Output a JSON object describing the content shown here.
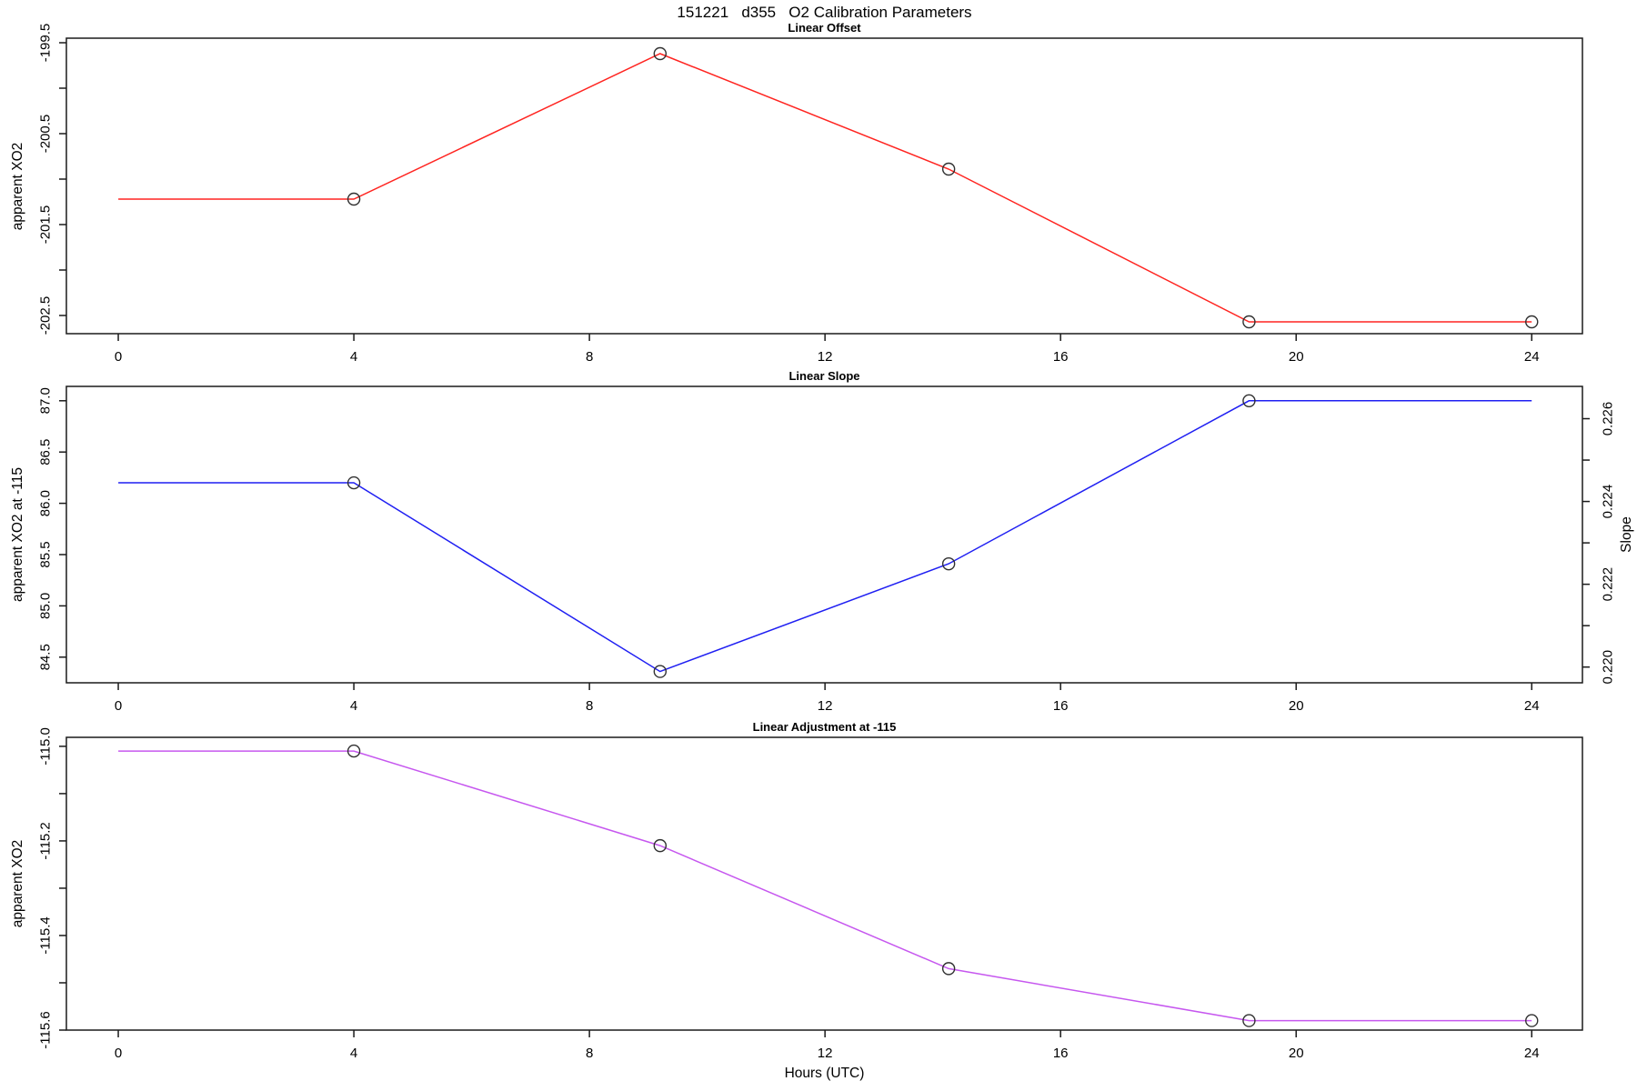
{
  "page_title": "151221   d355   O2 Calibration Parameters",
  "x_axis": {
    "label": "Hours (UTC)",
    "xlim": [
      -0.881,
      24.861
    ],
    "ticks": [
      {
        "v": 0,
        "label": "0"
      },
      {
        "v": 4,
        "label": "4"
      },
      {
        "v": 8,
        "label": "8"
      },
      {
        "v": 12,
        "label": "12"
      },
      {
        "v": 16,
        "label": "16"
      },
      {
        "v": 20,
        "label": "20"
      },
      {
        "v": 24,
        "label": "24"
      }
    ]
  },
  "colors": {
    "axis": "#1a1a1a",
    "marker_outline": "#303030",
    "offset_line": "#ff2420",
    "slope_line": "#1f1ff2",
    "adjustment_line": "#c657ef"
  },
  "chart_data": [
    {
      "type": "line",
      "title": "Linear Offset",
      "ylabel": "apparent XO2",
      "series_color": "#ff2420",
      "x": [
        0,
        4,
        9.2,
        14.1,
        19.2,
        24
      ],
      "y": [
        -201.22,
        -201.22,
        -199.62,
        -200.89,
        -202.57,
        -202.57
      ],
      "markers": [
        false,
        true,
        true,
        true,
        true,
        true
      ],
      "ylim": [
        -202.7,
        -199.45
      ],
      "yticks": [
        {
          "v": -199.5,
          "label": "-199.5"
        },
        {
          "v": -200.0,
          "label": ""
        },
        {
          "v": -200.5,
          "label": "-200.5"
        },
        {
          "v": -201.0,
          "label": ""
        },
        {
          "v": -201.5,
          "label": "-201.5"
        },
        {
          "v": -202.0,
          "label": ""
        },
        {
          "v": -202.5,
          "label": "-202.5"
        }
      ]
    },
    {
      "type": "line",
      "title": "Linear Slope",
      "ylabel": "apparent XO2 at -115",
      "ylabel_right": "Slope",
      "series_color": "#1f1ff2",
      "x": [
        0,
        4,
        9.2,
        14.1,
        19.2,
        24
      ],
      "y": [
        86.2,
        86.2,
        84.36,
        85.41,
        87.0,
        87.0
      ],
      "markers": [
        false,
        true,
        true,
        true,
        true,
        false
      ],
      "ylim": [
        84.25,
        87.14
      ],
      "yticks": [
        {
          "v": 87.0,
          "label": "87.0"
        },
        {
          "v": 86.5,
          "label": "86.5"
        },
        {
          "v": 86.0,
          "label": "86.0"
        },
        {
          "v": 85.5,
          "label": "85.5"
        },
        {
          "v": 85.0,
          "label": "85.0"
        },
        {
          "v": 84.5,
          "label": "84.5"
        }
      ],
      "ylim_right": [
        0.21962,
        0.22678
      ],
      "yticks_right": [
        {
          "v": 0.226,
          "label": "0.226"
        },
        {
          "v": 0.225,
          "label": ""
        },
        {
          "v": 0.224,
          "label": "0.224"
        },
        {
          "v": 0.223,
          "label": ""
        },
        {
          "v": 0.222,
          "label": "0.222"
        },
        {
          "v": 0.221,
          "label": ""
        },
        {
          "v": 0.22,
          "label": "0.220"
        }
      ]
    },
    {
      "type": "line",
      "title": "Linear Adjustment at -115",
      "ylabel": "apparent XO2",
      "series_color": "#c657ef",
      "x": [
        0,
        4,
        9.2,
        14.1,
        19.2,
        24
      ],
      "y": [
        -115.01,
        -115.01,
        -115.21,
        -115.47,
        -115.58,
        -115.58
      ],
      "markers": [
        false,
        true,
        true,
        true,
        true,
        true
      ],
      "ylim": [
        -115.6,
        -114.981
      ],
      "yticks": [
        {
          "v": -115.0,
          "label": "-115.0"
        },
        {
          "v": -115.1,
          "label": ""
        },
        {
          "v": -115.2,
          "label": "-115.2"
        },
        {
          "v": -115.3,
          "label": ""
        },
        {
          "v": -115.4,
          "label": "-115.4"
        },
        {
          "v": -115.5,
          "label": ""
        },
        {
          "v": -115.6,
          "label": "-115.6"
        }
      ]
    }
  ]
}
